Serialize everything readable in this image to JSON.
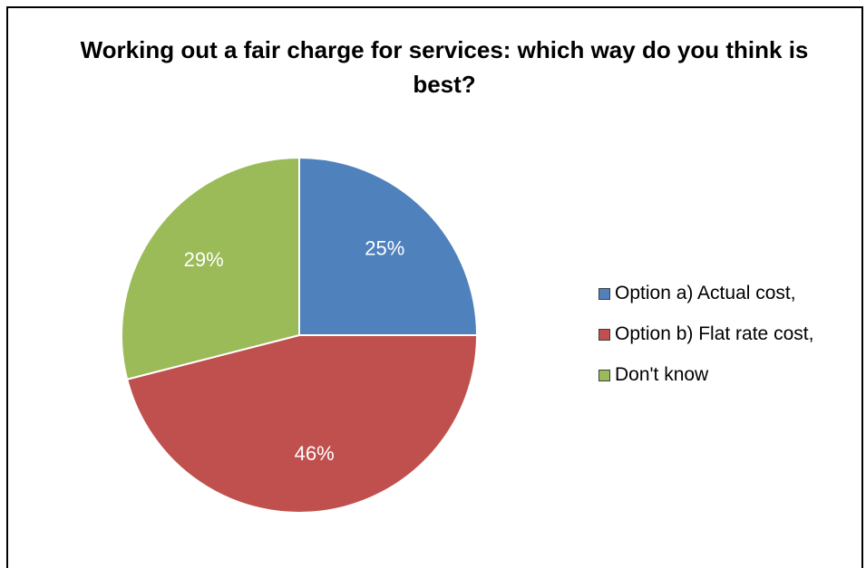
{
  "chart_data": {
    "type": "pie",
    "title": "Working out a fair charge for services: which way do you think is best?",
    "slices": [
      {
        "label": "Option a) Actual cost,",
        "value": 25,
        "display": "25%",
        "color": "#4F81BD"
      },
      {
        "label": "Option b) Flat rate cost,",
        "value": 46,
        "display": "46%",
        "color": "#C0504D"
      },
      {
        "label": "Don't know",
        "value": 29,
        "display": "29%",
        "color": "#9BBB59"
      }
    ],
    "legend_position": "right",
    "start_angle": "12 o'clock",
    "direction": "clockwise"
  }
}
